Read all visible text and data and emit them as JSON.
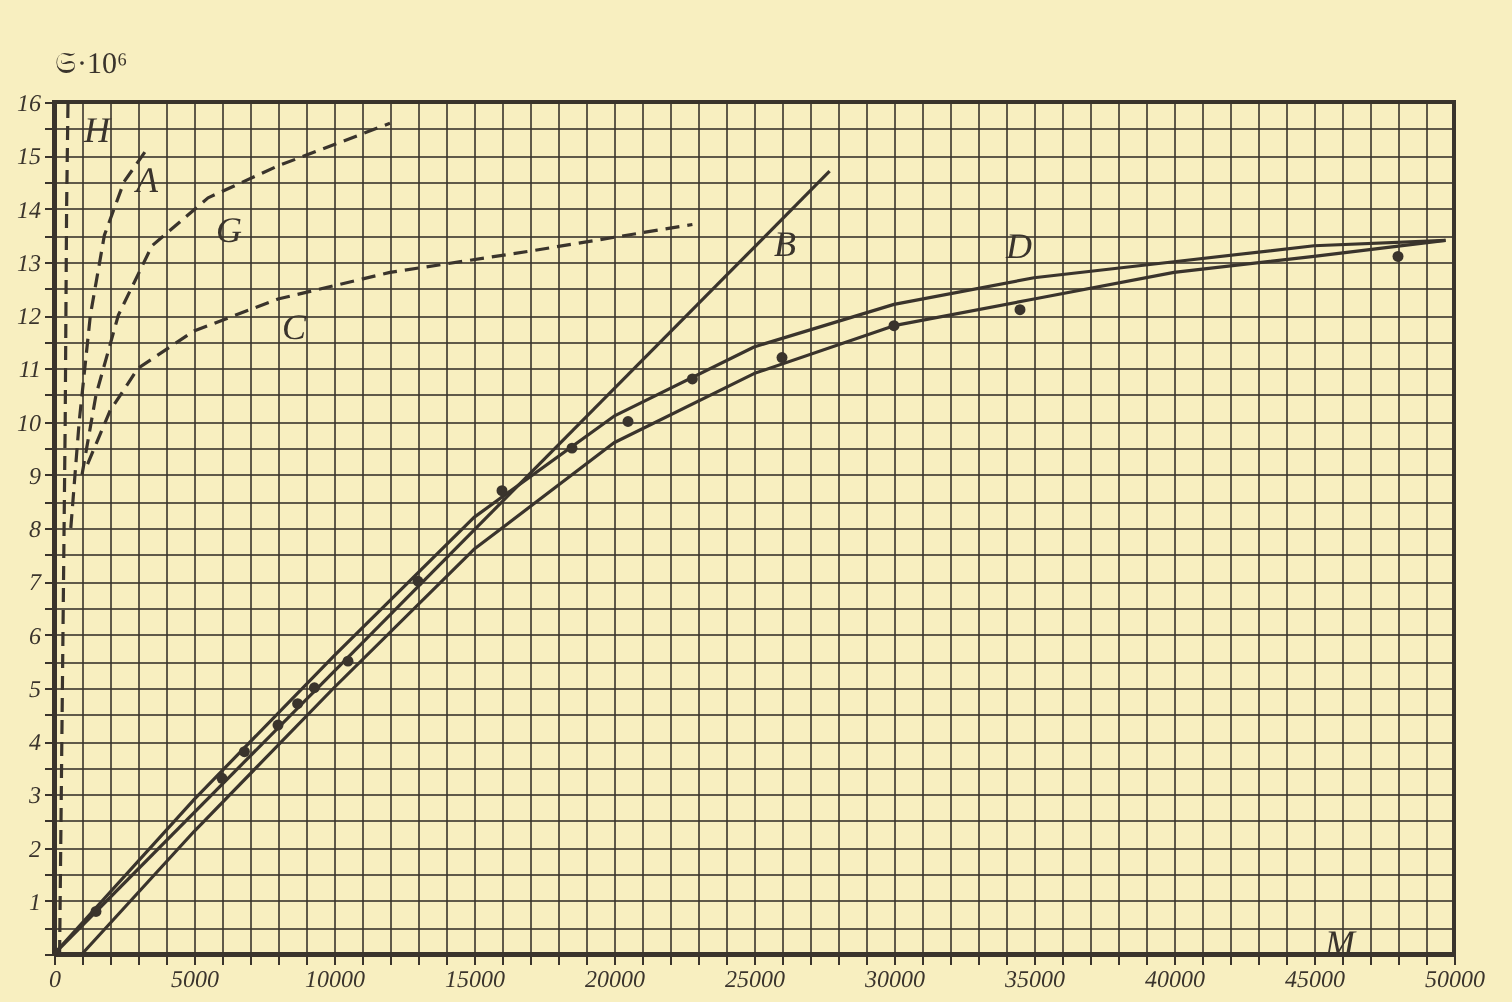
{
  "chart_data": {
    "type": "line",
    "xlabel": "M",
    "ylabel": "𝔖·10⁶",
    "xlim": [
      0,
      50000
    ],
    "ylim": [
      0,
      16
    ],
    "xticks": [
      0,
      {
        "value": 1000,
        "label": null
      },
      {
        "value": 2000,
        "label": null
      },
      {
        "value": 3000,
        "label": null
      },
      {
        "value": 4000,
        "label": null
      },
      5000,
      {
        "value": 6000,
        "label": null
      },
      {
        "value": 7000,
        "label": null
      },
      {
        "value": 8000,
        "label": null
      },
      {
        "value": 9000,
        "label": null
      },
      10000,
      {
        "value": 11000,
        "label": null
      },
      {
        "value": 12000,
        "label": null
      },
      {
        "value": 13000,
        "label": null
      },
      {
        "value": 14000,
        "label": null
      },
      15000,
      {
        "value": 16000,
        "label": null
      },
      {
        "value": 17000,
        "label": null
      },
      {
        "value": 18000,
        "label": null
      },
      {
        "value": 19000,
        "label": null
      },
      20000,
      {
        "value": 21000,
        "label": null
      },
      {
        "value": 22000,
        "label": null
      },
      {
        "value": 23000,
        "label": null
      },
      {
        "value": 24000,
        "label": null
      },
      25000,
      {
        "value": 26000,
        "label": null
      },
      {
        "value": 27000,
        "label": null
      },
      {
        "value": 28000,
        "label": null
      },
      {
        "value": 29000,
        "label": null
      },
      30000,
      {
        "value": 31000,
        "label": null
      },
      {
        "value": 32000,
        "label": null
      },
      {
        "value": 33000,
        "label": null
      },
      {
        "value": 34000,
        "label": null
      },
      35000,
      {
        "value": 36000,
        "label": null
      },
      {
        "value": 37000,
        "label": null
      },
      {
        "value": 38000,
        "label": null
      },
      {
        "value": 39000,
        "label": null
      },
      40000,
      {
        "value": 41000,
        "label": null
      },
      {
        "value": 42000,
        "label": null
      },
      {
        "value": 43000,
        "label": null
      },
      {
        "value": 44000,
        "label": null
      },
      45000,
      {
        "value": 46000,
        "label": null
      },
      {
        "value": 47000,
        "label": null
      },
      {
        "value": 48000,
        "label": null
      },
      {
        "value": 49000,
        "label": null
      },
      50000
    ],
    "yticks": [
      {
        "value": 0,
        "label": null
      },
      {
        "value": 0.5,
        "label": null
      },
      1,
      {
        "value": 1.5,
        "label": null
      },
      2,
      {
        "value": 2.5,
        "label": null
      },
      3,
      {
        "value": 3.5,
        "label": null
      },
      4,
      {
        "value": 4.5,
        "label": null
      },
      5,
      {
        "value": 5.5,
        "label": null
      },
      6,
      {
        "value": 6.5,
        "label": null
      },
      7,
      {
        "value": 7.5,
        "label": null
      },
      8,
      {
        "value": 8.5,
        "label": null
      },
      9,
      {
        "value": 9.5,
        "label": null
      },
      10,
      {
        "value": 10.5,
        "label": null
      },
      11,
      {
        "value": 11.5,
        "label": null
      },
      12,
      {
        "value": 12.5,
        "label": null
      },
      13,
      {
        "value": 13.5,
        "label": null
      },
      14,
      {
        "value": 14.5,
        "label": null
      },
      15,
      {
        "value": 15.5,
        "label": null
      },
      16
    ],
    "grid": true,
    "series": [
      {
        "marker": "none",
        "line_style": "dashed",
        "color": "#3a342c",
        "x": [
          200,
          300,
          400,
          450,
          500
        ],
        "values": [
          0,
          5,
          10,
          14,
          16
        ]
      },
      {
        "marker": "none",
        "line_style": "dashed",
        "color": "#3a342c",
        "x": [
          600,
          900,
          1300,
          1800,
          2500,
          3300
        ],
        "values": [
          8,
          10,
          12,
          13.5,
          14.5,
          15.1
        ]
      },
      {
        "marker": "none",
        "line_style": "dashed",
        "color": "#3a342c",
        "x": [
          1000,
          1500,
          2300,
          3500,
          5500,
          8000,
          12000
        ],
        "values": [
          9,
          10.5,
          12,
          13.3,
          14.2,
          14.8,
          15.6
        ]
      },
      {
        "marker": "none",
        "line_style": "dashed",
        "color": "#3a342c",
        "x": [
          1200,
          2000,
          3000,
          5000,
          8000,
          12000,
          17000,
          22800
        ],
        "values": [
          9.2,
          10.2,
          11,
          11.7,
          12.3,
          12.8,
          13.2,
          13.7
        ]
      },
      {
        "marker": "none",
        "line_style": "solid",
        "color": "#3a342c",
        "x": [
          0,
          27700
        ],
        "values": [
          0,
          14.7
        ]
      },
      {
        "marker": "none",
        "line_style": "solid",
        "color": "#3a342c",
        "x": [
          0,
          5000,
          10000,
          15000,
          20000,
          25000,
          30000,
          35000,
          40000,
          45000,
          49700
        ],
        "values": [
          0,
          2.9,
          5.6,
          8.2,
          10.1,
          11.4,
          12.2,
          12.7,
          13.0,
          13.3,
          13.4
        ]
      },
      {
        "marker": "none",
        "line_style": "solid",
        "color": "#3a342c",
        "x": [
          1000,
          5000,
          10000,
          15000,
          20000,
          25000,
          30000,
          35000,
          40000,
          45000,
          49700
        ],
        "values": [
          0,
          2.3,
          5.0,
          7.6,
          9.6,
          10.9,
          11.8,
          12.3,
          12.8,
          13.1,
          13.4
        ]
      },
      {
        "type": "scatter",
        "marker": "circle",
        "color": "#3a342c",
        "x": [
          1500,
          6000,
          6800,
          8000,
          8700,
          9300,
          10500,
          13000,
          16000,
          18500,
          20500,
          22800,
          26000,
          30000,
          34500,
          48000
        ],
        "values": [
          0.8,
          3.3,
          3.8,
          4.3,
          4.7,
          5.0,
          5.5,
          7.0,
          8.7,
          9.5,
          10.0,
          10.8,
          11.2,
          11.8,
          12.1,
          13.1
        ]
      }
    ],
    "annotations": [
      {
        "text": "H",
        "x": 500,
        "y": 16
      },
      {
        "text": "A",
        "x": 2500,
        "y": 14.5
      },
      {
        "text": "G",
        "x": 5500,
        "y": 14.2
      },
      {
        "text": "C",
        "x": 8000,
        "y": 12.3
      },
      {
        "text": "B",
        "x": 25000,
        "y": 13.3
      },
      {
        "text": "D",
        "x": 35000,
        "y": 12.7
      }
    ]
  }
}
